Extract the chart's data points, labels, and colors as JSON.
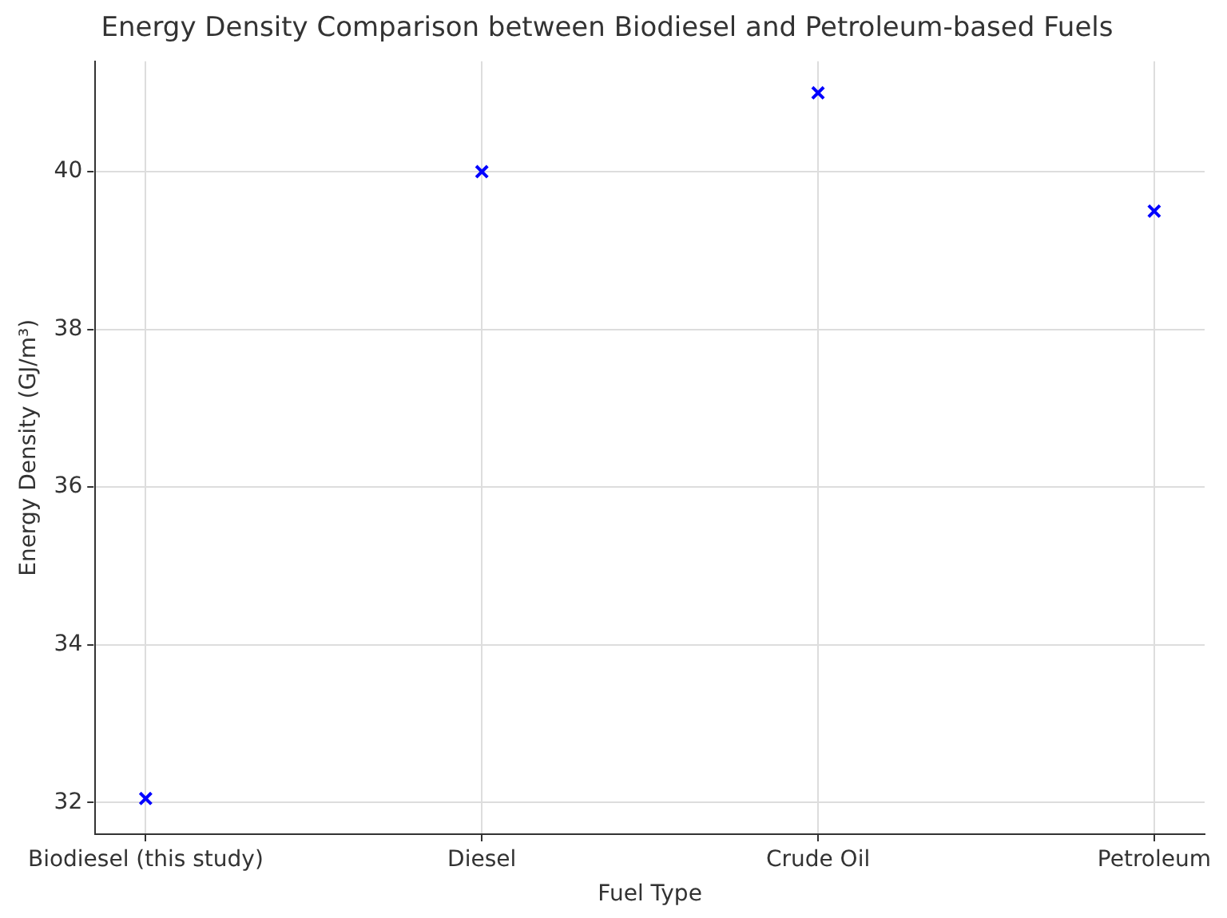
{
  "chart_data": {
    "type": "scatter",
    "title": "Energy Density Comparison between Biodiesel and Petroleum-based Fuels",
    "xlabel": "Fuel Type",
    "ylabel": "Energy Density (GJ/m³)",
    "categories": [
      "Biodiesel (this study)",
      "Diesel",
      "Crude Oil",
      "Petroleum"
    ],
    "series": [
      {
        "color": "#0000ff",
        "values": [
          32.05,
          40,
          41,
          39.5
        ]
      }
    ],
    "ylim": [
      31.6,
      41.4
    ],
    "yticks": [
      32,
      34,
      36,
      38,
      40
    ],
    "grid": true,
    "marker": "cross",
    "legend": false
  }
}
